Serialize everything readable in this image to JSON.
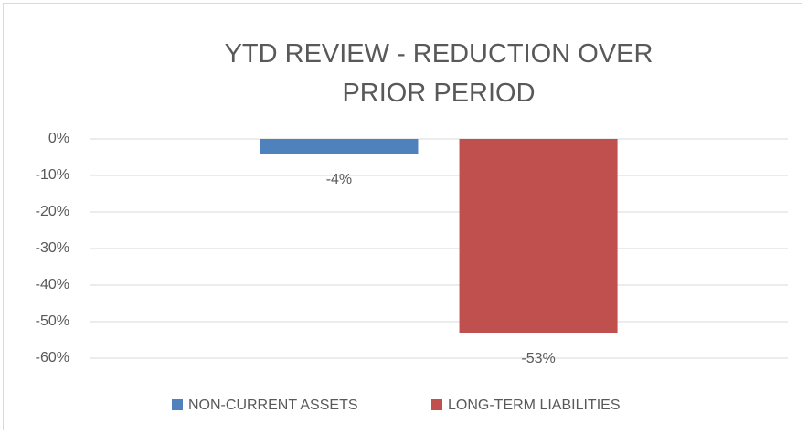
{
  "chart_data": {
    "type": "bar",
    "title": "YTD REVIEW - REDUCTION OVER PRIOR PERIOD",
    "categories": [
      null
    ],
    "series": [
      {
        "name": "NON-CURRENT ASSETS",
        "color": "#4f81bd",
        "values": [
          -4
        ],
        "value_labels": [
          "-4%"
        ]
      },
      {
        "name": "LONG-TERM LIABILITIES",
        "color": "#c0504d",
        "values": [
          -53
        ],
        "value_labels": [
          "-53%"
        ]
      }
    ],
    "ylim": [
      -60,
      0
    ],
    "yticks": [
      {
        "value": 0,
        "label": "0%"
      },
      {
        "value": -10,
        "label": "-10%"
      },
      {
        "value": -20,
        "label": "-20%"
      },
      {
        "value": -30,
        "label": "-30%"
      },
      {
        "value": -40,
        "label": "-40%"
      },
      {
        "value": -50,
        "label": "-50%"
      },
      {
        "value": -60,
        "label": "-60%"
      }
    ],
    "grid": true,
    "legend": "bottom"
  }
}
